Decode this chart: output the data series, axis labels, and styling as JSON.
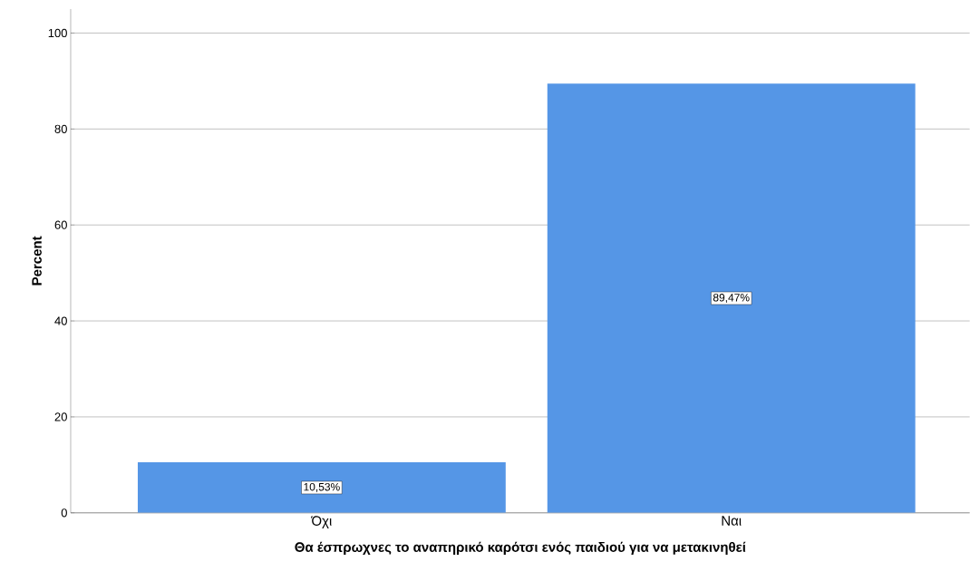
{
  "chart_data": {
    "type": "bar",
    "xlabel": "Θα έσπρωχνες το αναπηρικό καρότσι ενός παιδιού για να μετακινηθεί",
    "ylabel": "Percent",
    "categories": [
      "Όχι",
      "Ναι"
    ],
    "values": [
      10.53,
      89.47
    ],
    "value_labels": [
      "10,53%",
      "89,47%"
    ],
    "color": "#5596e6",
    "ylim": [
      0,
      105
    ],
    "yticks": [
      0,
      20,
      40,
      60,
      80,
      100
    ],
    "grid": "y"
  }
}
